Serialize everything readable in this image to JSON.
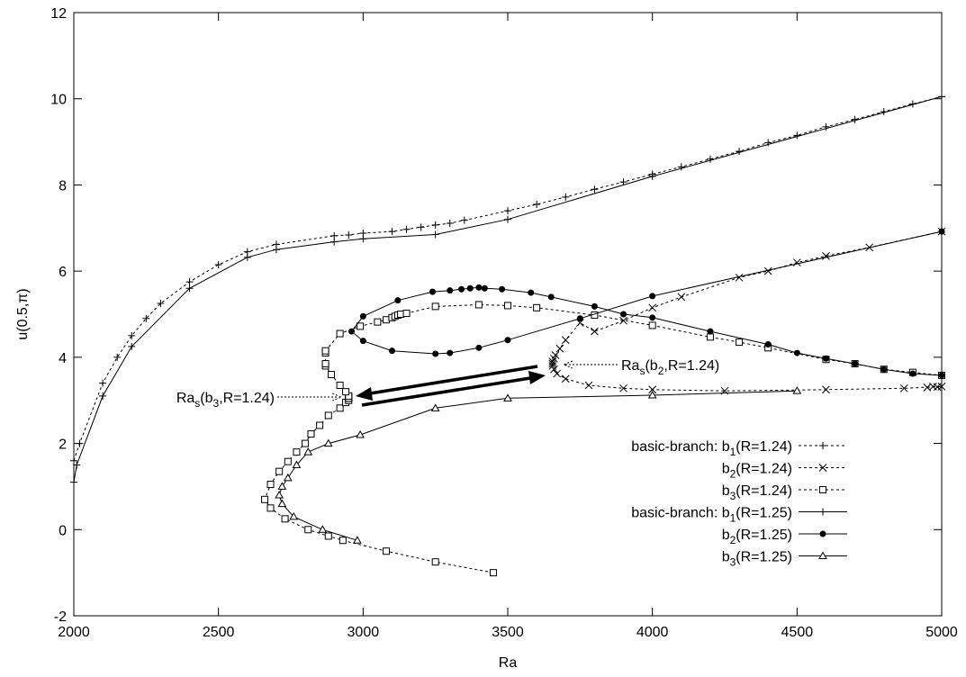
{
  "chart_data": {
    "type": "line",
    "xlabel": "Ra",
    "ylabel": "u(0.5,π)",
    "xlim": [
      2000,
      5000
    ],
    "ylim": [
      -2,
      12
    ],
    "xticks": [
      2000,
      2500,
      3000,
      3500,
      4000,
      4500,
      5000
    ],
    "yticks": [
      -2,
      0,
      2,
      4,
      6,
      8,
      10,
      12
    ],
    "grid": false,
    "legend_position": "bottom-right",
    "series": [
      {
        "name_prefix": "basic-branch: ",
        "name_main": "b",
        "name_sub": "1",
        "name_suffix": "(R=1.24)",
        "line": "dashed",
        "marker": "plus",
        "x": [
          2000,
          2020,
          2100,
          2150,
          2200,
          2250,
          2300,
          2400,
          2500,
          2600,
          2700,
          2900,
          2950,
          3000,
          3100,
          3150,
          3200,
          3250,
          3300,
          3350,
          3500,
          3600,
          3700,
          3800,
          3900,
          4000,
          4100,
          4200,
          4300,
          4400,
          4500,
          4600,
          4700,
          4800,
          4900,
          5000
        ],
        "y": [
          1.6,
          2.0,
          3.4,
          4.0,
          4.5,
          4.9,
          5.25,
          5.75,
          6.15,
          6.45,
          6.62,
          6.82,
          6.84,
          6.88,
          6.92,
          6.97,
          7.02,
          7.07,
          7.11,
          7.18,
          7.4,
          7.55,
          7.72,
          7.9,
          8.07,
          8.25,
          8.42,
          8.6,
          8.78,
          8.98,
          9.15,
          9.35,
          9.52,
          9.7,
          9.88,
          10.05
        ]
      },
      {
        "name_prefix": "",
        "name_main": "b",
        "name_sub": "2",
        "name_suffix": "(R=1.24)",
        "line": "dashed",
        "marker": "cross",
        "x": [
          4950,
          4970,
          4985,
          5000,
          4870,
          4600,
          4250,
          4000,
          3900,
          3780,
          3700,
          3670,
          3660,
          3655,
          3655,
          3655,
          3660,
          3665,
          3680,
          3700,
          3750,
          3800,
          3900,
          4000,
          4100,
          4300,
          4400,
          4500,
          4600,
          4750,
          5000
        ],
        "y": [
          3.3,
          3.32,
          3.31,
          3.32,
          3.28,
          3.25,
          3.22,
          3.25,
          3.28,
          3.35,
          3.5,
          3.62,
          3.72,
          3.8,
          3.85,
          3.9,
          3.97,
          4.05,
          4.2,
          4.4,
          4.8,
          4.6,
          4.85,
          5.15,
          5.4,
          5.85,
          6.0,
          6.2,
          6.35,
          6.55,
          6.92
        ]
      },
      {
        "name_prefix": "",
        "name_main": "b",
        "name_sub": "3",
        "name_suffix": "(R=1.24)",
        "line": "dashed",
        "marker": "square",
        "x": [
          3450,
          3250,
          3080,
          2930,
          2880,
          2810,
          2730,
          2680,
          2660,
          2680,
          2710,
          2740,
          2770,
          2800,
          2820,
          2850,
          2880,
          2920,
          2940,
          2950,
          2950,
          2950,
          2950,
          2950,
          2940,
          2920,
          2890,
          2870,
          2870,
          2870,
          2870,
          2920,
          2990,
          3050,
          3080,
          3100,
          3110,
          3120,
          3130,
          3150,
          3250,
          3400,
          3500,
          3600,
          3800,
          4000,
          4200,
          4300,
          4400,
          4600,
          4700,
          4800,
          4900,
          5000
        ],
        "y": [
          -1.0,
          -0.75,
          -0.5,
          -0.25,
          -0.15,
          0.0,
          0.25,
          0.5,
          0.7,
          1.05,
          1.35,
          1.58,
          1.8,
          2.0,
          2.22,
          2.42,
          2.65,
          2.82,
          2.95,
          3.0,
          3.05,
          3.1,
          3.05,
          3.1,
          3.2,
          3.35,
          3.6,
          3.8,
          3.85,
          4.1,
          4.15,
          4.55,
          4.72,
          4.82,
          4.87,
          4.92,
          4.95,
          4.98,
          5.0,
          5.02,
          5.18,
          5.22,
          5.2,
          5.15,
          4.98,
          4.74,
          4.47,
          4.35,
          4.22,
          3.95,
          3.85,
          3.72,
          3.65,
          3.58
        ]
      },
      {
        "name_prefix": "basic-branch: ",
        "name_main": "b",
        "name_sub": "1",
        "name_suffix": "(R=1.25)",
        "line": "solid",
        "marker": "plus",
        "x": [
          2000,
          2010,
          2100,
          2200,
          2400,
          2600,
          2700,
          2900,
          3000,
          3250,
          3500,
          4000,
          5000
        ],
        "y": [
          1.1,
          1.5,
          3.1,
          4.25,
          5.6,
          6.32,
          6.5,
          6.68,
          6.75,
          6.85,
          7.2,
          8.2,
          10.05
        ]
      },
      {
        "name_prefix": "",
        "name_main": "b",
        "name_sub": "2",
        "name_suffix": "(R=1.25)",
        "line": "solid",
        "marker": "circle",
        "x": [
          5000,
          4900,
          4800,
          4700,
          4600,
          4500,
          4400,
          4200,
          4000,
          3900,
          3800,
          3650,
          3580,
          3480,
          3420,
          3400,
          3370,
          3340,
          3300,
          3240,
          3120,
          3000,
          2960,
          3000,
          3100,
          3250,
          3300,
          3400,
          3500,
          3750,
          4000,
          5000
        ],
        "y": [
          3.58,
          3.62,
          3.72,
          3.85,
          3.97,
          4.1,
          4.3,
          4.6,
          4.92,
          5.0,
          5.18,
          5.4,
          5.5,
          5.58,
          5.6,
          5.62,
          5.6,
          5.58,
          5.55,
          5.52,
          5.32,
          4.95,
          4.6,
          4.38,
          4.15,
          4.08,
          4.1,
          4.22,
          4.4,
          4.9,
          5.42,
          6.92
        ]
      },
      {
        "name_prefix": "",
        "name_main": "b",
        "name_sub": "3",
        "name_suffix": "(R=1.25)",
        "line": "solid",
        "marker": "triangle",
        "x": [
          2980,
          2860,
          2760,
          2720,
          2710,
          2720,
          2740,
          2770,
          2810,
          2880,
          2990,
          3250,
          3500,
          4000,
          4500
        ],
        "y": [
          -0.25,
          0.0,
          0.3,
          0.6,
          0.8,
          1.0,
          1.2,
          1.5,
          1.8,
          2.0,
          2.2,
          2.82,
          3.05,
          3.12,
          3.22
        ]
      }
    ],
    "annotations": [
      {
        "label_main": "Ra",
        "label_sub": "s",
        "label_rest": "(b",
        "label_sub2": "3",
        "label_end": ",R=1.24)",
        "point": [
          2950,
          3.05
        ]
      },
      {
        "label_main": "Ra",
        "label_sub": "s",
        "label_rest": "(b",
        "label_sub2": "2",
        "label_end": ",R=1.24)",
        "point": [
          3655,
          3.85
        ]
      }
    ]
  }
}
